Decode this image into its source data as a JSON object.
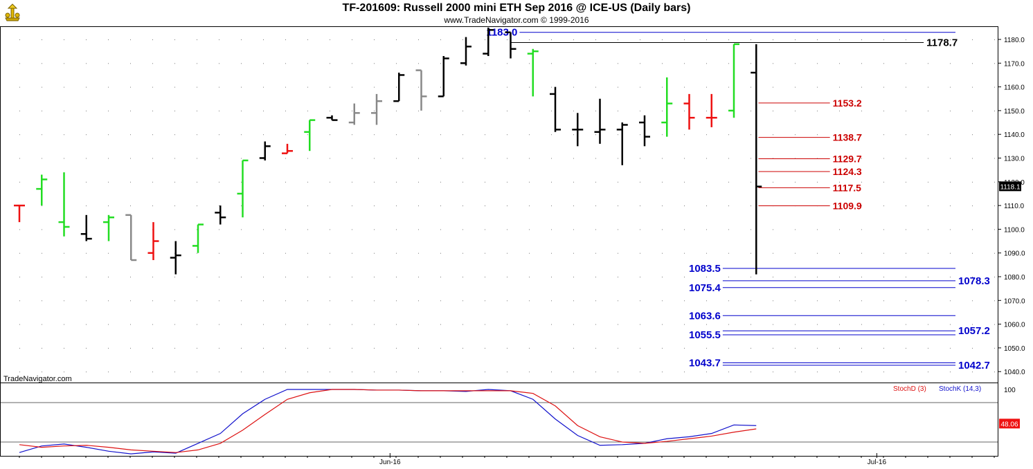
{
  "header": {
    "title": "TF-201609:  Russell 2000 mini ETH Sep 2016 @ ICE-US  (Daily bars)",
    "subtitle": "www.TradeNavigator.com © 1999-2016",
    "watermark": "TradeNavigator.com",
    "logo_icon": "trade-navigator-logo-icon"
  },
  "chart_data": [
    {
      "type": "ohlc",
      "ylim": [
        1036,
        1185
      ],
      "yticks": [
        "1180.0",
        "1170.0",
        "1160.0",
        "1150.0",
        "1140.0",
        "1130.0",
        "1120.0",
        "1110.0",
        "1100.0",
        "1090.0",
        "1080.0",
        "1070.0",
        "1060.0",
        "1050.0",
        "1040.0"
      ],
      "ytick_values": [
        1180,
        1170,
        1160,
        1150,
        1140,
        1130,
        1120,
        1110,
        1100,
        1090,
        1080,
        1070,
        1060,
        1050,
        1040
      ],
      "xticks": [
        {
          "label": "Jun-16",
          "index": 16.6
        },
        {
          "label": "Jul-16",
          "index": 38.4
        }
      ],
      "bar_colors": {
        "up": "#22dd22",
        "down": "#ee1111",
        "neutral": "#000000",
        "grey": "#888888"
      },
      "bars": [
        {
          "o": 1110,
          "h": 1110,
          "l": 1103,
          "c": 1110,
          "color": "red"
        },
        {
          "o": 1117,
          "h": 1123,
          "l": 1110,
          "c": 1121,
          "color": "up"
        },
        {
          "o": 1103,
          "h": 1124,
          "l": 1097,
          "c": 1101,
          "color": "up"
        },
        {
          "o": 1098,
          "h": 1106,
          "l": 1095,
          "c": 1096,
          "color": "black"
        },
        {
          "o": 1103,
          "h": 1106,
          "l": 1095,
          "c": 1105,
          "color": "up"
        },
        {
          "o": 1106,
          "h": 1106,
          "l": 1087,
          "c": 1087,
          "color": "grey"
        },
        {
          "o": 1090,
          "h": 1103,
          "l": 1087,
          "c": 1095,
          "color": "red"
        },
        {
          "o": 1088,
          "h": 1095,
          "l": 1081,
          "c": 1089,
          "color": "black"
        },
        {
          "o": 1093,
          "h": 1102,
          "l": 1090,
          "c": 1102,
          "color": "up"
        },
        {
          "o": 1107,
          "h": 1110,
          "l": 1102,
          "c": 1105,
          "color": "black"
        },
        {
          "o": 1115,
          "h": 1129,
          "l": 1105,
          "c": 1129,
          "color": "up"
        },
        {
          "o": 1130,
          "h": 1137,
          "l": 1129,
          "c": 1135,
          "color": "black"
        },
        {
          "o": 1132,
          "h": 1136,
          "l": 1132,
          "c": 1133,
          "color": "red"
        },
        {
          "o": 1141,
          "h": 1146,
          "l": 1133,
          "c": 1146,
          "color": "up"
        },
        {
          "o": 1147,
          "h": 1148,
          "l": 1146,
          "c": 1146,
          "color": "black"
        },
        {
          "o": 1145,
          "h": 1153,
          "l": 1144,
          "c": 1149,
          "color": "grey"
        },
        {
          "o": 1149,
          "h": 1157,
          "l": 1144,
          "c": 1154,
          "color": "grey"
        },
        {
          "o": 1154,
          "h": 1166,
          "l": 1154,
          "c": 1165,
          "color": "black"
        },
        {
          "o": 1167,
          "h": 1167,
          "l": 1150,
          "c": 1156,
          "color": "grey"
        },
        {
          "o": 1156,
          "h": 1173,
          "l": 1156,
          "c": 1172,
          "color": "black"
        },
        {
          "o": 1170,
          "h": 1181,
          "l": 1169,
          "c": 1177,
          "color": "black"
        },
        {
          "o": 1174,
          "h": 1185,
          "l": 1173,
          "c": 1184,
          "color": "black"
        },
        {
          "o": 1183,
          "h": 1183,
          "l": 1172,
          "c": 1176,
          "color": "black"
        },
        {
          "o": 1174,
          "h": 1176,
          "l": 1156,
          "c": 1175,
          "color": "up"
        },
        {
          "o": 1157,
          "h": 1160,
          "l": 1141,
          "c": 1142,
          "color": "black"
        },
        {
          "o": 1142,
          "h": 1149,
          "l": 1135,
          "c": 1142,
          "color": "black"
        },
        {
          "o": 1141,
          "h": 1155,
          "l": 1136,
          "c": 1142,
          "color": "black"
        },
        {
          "o": 1142,
          "h": 1145,
          "l": 1127,
          "c": 1144,
          "color": "black"
        },
        {
          "o": 1145,
          "h": 1148,
          "l": 1135,
          "c": 1139,
          "color": "black"
        },
        {
          "o": 1145,
          "h": 1164,
          "l": 1139,
          "c": 1153,
          "color": "up"
        },
        {
          "o": 1153,
          "h": 1157,
          "l": 1142,
          "c": 1147,
          "color": "red"
        },
        {
          "o": 1147,
          "h": 1157,
          "l": 1143,
          "c": 1147,
          "color": "red"
        },
        {
          "o": 1150,
          "h": 1178,
          "l": 1147,
          "c": 1178,
          "color": "up"
        },
        {
          "o": 1166,
          "h": 1178,
          "l": 1081,
          "c": 1118,
          "color": "black"
        }
      ],
      "levels": [
        {
          "value": 1183.0,
          "label": "1183.0",
          "color": "#0000cc",
          "label_side": "left",
          "from_index": 22.4,
          "to_index": 43.8
        },
        {
          "value": 1178.7,
          "label": "1178.7",
          "color": "#000000",
          "label_side": "right",
          "from_index": 22.0,
          "to_index": 40.5
        },
        {
          "value": 1153.2,
          "label": "1153.2",
          "color": "#cc0000",
          "label_side": "right",
          "from_index": 33.1,
          "to_index": 36.3
        },
        {
          "value": 1138.7,
          "label": "1138.7",
          "color": "#cc0000",
          "label_side": "right",
          "from_index": 33.1,
          "to_index": 36.3
        },
        {
          "value": 1129.7,
          "label": "1129.7",
          "color": "#cc0000",
          "label_side": "right",
          "from_index": 33.1,
          "to_index": 36.3
        },
        {
          "value": 1124.3,
          "label": "1124.3",
          "color": "#cc0000",
          "label_side": "right",
          "from_index": 33.1,
          "to_index": 36.3
        },
        {
          "value": 1117.5,
          "label": "1117.5",
          "color": "#cc0000",
          "label_side": "right",
          "from_index": 33.1,
          "to_index": 36.3
        },
        {
          "value": 1109.9,
          "label": "1109.9",
          "color": "#cc0000",
          "label_side": "right",
          "from_index": 33.1,
          "to_index": 36.3
        },
        {
          "value": 1083.5,
          "label": "1083.5",
          "color": "#0000cc",
          "label_side": "left",
          "from_index": 31.5,
          "to_index": 43.8
        },
        {
          "value": 1078.3,
          "label": "1078.3",
          "color": "#0000cc",
          "label_side": "right",
          "from_index": 31.5,
          "to_index": 42.0
        },
        {
          "value": 1075.4,
          "label": "1075.4",
          "color": "#0000cc",
          "label_side": "left",
          "from_index": 31.5,
          "to_index": 43.8
        },
        {
          "value": 1063.6,
          "label": "1063.6",
          "color": "#0000cc",
          "label_side": "left",
          "from_index": 31.5,
          "to_index": 43.8
        },
        {
          "value": 1057.2,
          "label": "1057.2",
          "color": "#0000cc",
          "label_side": "right",
          "from_index": 31.5,
          "to_index": 42.0
        },
        {
          "value": 1055.5,
          "label": "1055.5",
          "color": "#0000cc",
          "label_side": "left",
          "from_index": 31.5,
          "to_index": 43.8
        },
        {
          "value": 1043.7,
          "label": "1043.7",
          "color": "#0000cc",
          "label_side": "left",
          "from_index": 31.5,
          "to_index": 43.8
        },
        {
          "value": 1042.7,
          "label": "1042.7",
          "color": "#0000cc",
          "label_side": "right",
          "from_index": 31.5,
          "to_index": 42.0
        }
      ],
      "last_price": {
        "value": 1118.1,
        "label": "1118.1"
      }
    },
    {
      "type": "line",
      "indicator": "stochastic",
      "ylim": [
        -5,
        105
      ],
      "yticks": [
        "100"
      ],
      "ytick_values": [
        100
      ],
      "reference_levels": [
        80,
        20
      ],
      "legend": [
        {
          "name": "StochD (3)",
          "color": "#dd1111"
        },
        {
          "name": "StochK (14,3)",
          "color": "#1111cc"
        }
      ],
      "series": [
        {
          "name": "StochK (14,3)",
          "color": "#1111cc",
          "values": [
            4,
            14,
            17,
            12,
            6,
            2,
            5,
            3,
            18,
            33,
            63,
            85,
            100,
            100,
            100,
            100,
            99,
            99,
            98,
            98,
            97,
            100,
            98,
            85,
            55,
            30,
            15,
            16,
            18,
            25,
            28,
            33,
            46,
            45
          ]
        },
        {
          "name": "StochD (3)",
          "color": "#dd1111",
          "values": [
            16,
            12,
            14,
            15,
            12,
            8,
            6,
            4,
            8,
            18,
            38,
            62,
            85,
            95,
            100,
            100,
            99,
            99,
            98,
            98,
            98,
            98,
            98,
            94,
            75,
            45,
            28,
            20,
            18,
            21,
            25,
            29,
            35,
            40
          ]
        }
      ],
      "last_value": {
        "value": 48.06,
        "label": "48.06"
      }
    }
  ]
}
